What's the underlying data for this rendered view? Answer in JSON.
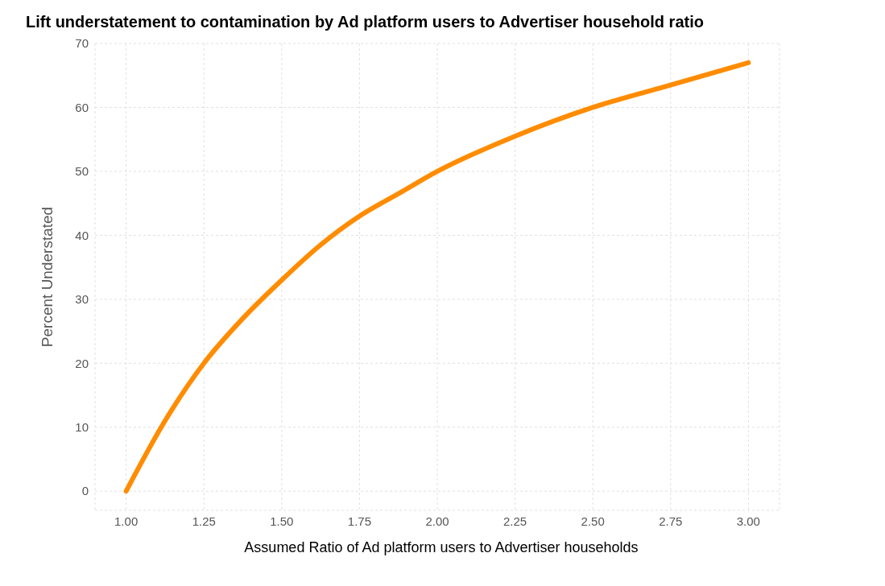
{
  "chart_data": {
    "type": "line",
    "title": "Lift understatement to contamination by Ad platform users to Advertiser household ratio",
    "xlabel": "Assumed Ratio of Ad platform users to Advertiser households",
    "ylabel": "Percent Understated",
    "x": [
      1.0,
      1.125,
      1.25,
      1.375,
      1.5,
      1.625,
      1.75,
      1.875,
      2.0,
      2.25,
      2.5,
      2.75,
      3.0
    ],
    "series": [
      {
        "color": "#ff8c00",
        "values": [
          0,
          11,
          20,
          27,
          33,
          38.5,
          43,
          46.5,
          50,
          55.5,
          60,
          63.5,
          67
        ]
      }
    ],
    "xlim": [
      0.9,
      3.1
    ],
    "xticks": [
      {
        "value": 1,
        "label": "1.00"
      },
      {
        "value": 1.25,
        "label": "1.25"
      },
      {
        "value": 1.5,
        "label": "1.50"
      },
      {
        "value": 1.75,
        "label": "1.75"
      },
      {
        "value": 2,
        "label": "2.00"
      },
      {
        "value": 2.25,
        "label": "2.25"
      },
      {
        "value": 2.5,
        "label": "2.50"
      },
      {
        "value": 2.75,
        "label": "2.75"
      },
      {
        "value": 3,
        "label": "3.00"
      }
    ],
    "ylim": [
      -3,
      70
    ],
    "yticks": [
      0,
      10,
      20,
      30,
      40,
      50,
      60,
      70
    ],
    "grid": true,
    "marker": "none",
    "line_style": "solid",
    "legend": false
  }
}
